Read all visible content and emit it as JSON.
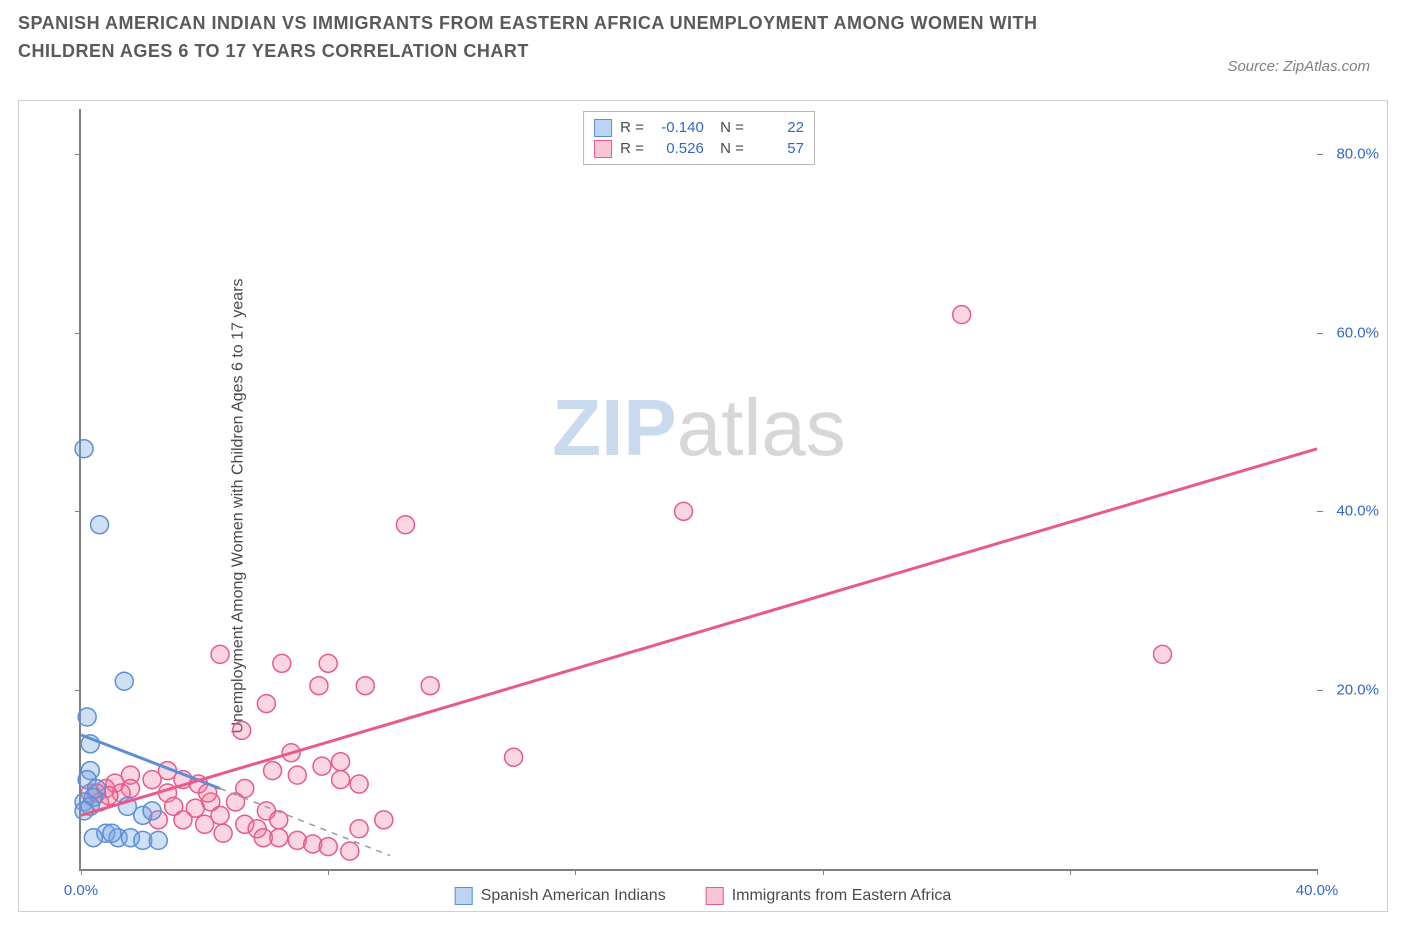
{
  "title": "SPANISH AMERICAN INDIAN VS IMMIGRANTS FROM EASTERN AFRICA UNEMPLOYMENT AMONG WOMEN WITH CHILDREN AGES 6 TO 17 YEARS CORRELATION CHART",
  "source": "Source: ZipAtlas.com",
  "y_label": "Unemployment Among Women with Children Ages 6 to 17 years",
  "watermark": {
    "left": "ZIP",
    "right": "atlas"
  },
  "chart": {
    "type": "scatter",
    "background_color": "#ffffff",
    "axis_color": "#808080",
    "tick_label_color": "#3366cc",
    "xlim": [
      0,
      40
    ],
    "ylim": [
      0,
      85
    ],
    "x_ticks": [
      {
        "value": 0,
        "label": "0.0%"
      },
      {
        "value": 40,
        "label": "40.0%"
      }
    ],
    "x_minor_ticks": [
      8,
      16,
      24,
      32
    ],
    "y_ticks": [
      {
        "value": 20,
        "label": "20.0%"
      },
      {
        "value": 40,
        "label": "40.0%"
      },
      {
        "value": 60,
        "label": "60.0%"
      },
      {
        "value": 80,
        "label": "80.0%"
      }
    ],
    "series": [
      {
        "id": "spanish_american_indians",
        "label": "Spanish American Indians",
        "fill": "rgba(117,162,224,0.35)",
        "stroke": "#5b8fd6",
        "swatch_fill": "#bcd3f2",
        "swatch_stroke": "#5b8fd6",
        "marker_radius": 9,
        "R": "-0.140",
        "N": "22",
        "trend": {
          "x1": 0,
          "y1": 15,
          "x2": 4.5,
          "y2": 9,
          "dash": false,
          "width": 3
        },
        "trend_ext": {
          "x1": 4.5,
          "y1": 9,
          "x2": 10,
          "y2": 1.5,
          "dash": true,
          "width": 1.5
        },
        "points": [
          [
            0.1,
            47
          ],
          [
            0.6,
            38.5
          ],
          [
            0.2,
            17
          ],
          [
            0.3,
            14
          ],
          [
            0.3,
            11
          ],
          [
            0.2,
            10
          ],
          [
            0.5,
            9
          ],
          [
            0.4,
            8
          ],
          [
            0.1,
            7.5
          ],
          [
            0.3,
            7
          ],
          [
            0.1,
            6.5
          ],
          [
            1.4,
            21
          ],
          [
            1.5,
            7
          ],
          [
            2.0,
            6
          ],
          [
            2.3,
            6.5
          ],
          [
            0.8,
            4
          ],
          [
            1.2,
            3.5
          ],
          [
            1.6,
            3.5
          ],
          [
            2.0,
            3.2
          ],
          [
            2.5,
            3.2
          ],
          [
            0.4,
            3.5
          ],
          [
            1.0,
            4
          ]
        ]
      },
      {
        "id": "immigrants_eastern_africa",
        "label": "Immigrants from Eastern Africa",
        "fill": "rgba(238,120,160,0.30)",
        "stroke": "#e85b89",
        "swatch_fill": "#f6c6d8",
        "swatch_stroke": "#e85b89",
        "marker_radius": 9,
        "R": "0.526",
        "N": "57",
        "trend": {
          "x1": 0,
          "y1": 6,
          "x2": 40,
          "y2": 47,
          "dash": false,
          "width": 3
        },
        "points": [
          [
            28.5,
            62
          ],
          [
            19.5,
            40
          ],
          [
            10.5,
            38.5
          ],
          [
            35,
            24
          ],
          [
            14,
            12.5
          ],
          [
            4.5,
            24
          ],
          [
            6.5,
            23
          ],
          [
            8.0,
            23
          ],
          [
            6.0,
            18.5
          ],
          [
            7.7,
            20.5
          ],
          [
            9.2,
            20.5
          ],
          [
            11.3,
            20.5
          ],
          [
            5.2,
            15.5
          ],
          [
            6.8,
            13
          ],
          [
            6.2,
            11
          ],
          [
            7.0,
            10.5
          ],
          [
            7.8,
            11.5
          ],
          [
            8.4,
            12
          ],
          [
            8.4,
            10
          ],
          [
            9.0,
            9.5
          ],
          [
            5.3,
            9
          ],
          [
            5.0,
            7.5
          ],
          [
            4.2,
            7.5
          ],
          [
            3.8,
            9.5
          ],
          [
            3.3,
            10
          ],
          [
            2.8,
            11
          ],
          [
            2.3,
            10
          ],
          [
            2.8,
            8.5
          ],
          [
            1.6,
            10.5
          ],
          [
            1.6,
            9
          ],
          [
            1.1,
            9.6
          ],
          [
            1.3,
            8.5
          ],
          [
            0.8,
            9
          ],
          [
            0.9,
            8.2
          ],
          [
            0.5,
            8.5
          ],
          [
            0.6,
            7.5
          ],
          [
            0.3,
            8.5
          ],
          [
            3.0,
            7
          ],
          [
            3.7,
            6.8
          ],
          [
            3.3,
            5.5
          ],
          [
            4.0,
            5
          ],
          [
            4.5,
            6
          ],
          [
            4.6,
            4
          ],
          [
            5.3,
            5
          ],
          [
            5.7,
            4.5
          ],
          [
            6.0,
            6.5
          ],
          [
            6.4,
            5.5
          ],
          [
            6.4,
            3.5
          ],
          [
            7.0,
            3.2
          ],
          [
            7.5,
            2.8
          ],
          [
            8.0,
            2.5
          ],
          [
            8.7,
            2
          ],
          [
            9.0,
            4.5
          ],
          [
            9.8,
            5.5
          ],
          [
            5.9,
            3.5
          ],
          [
            4.1,
            8.5
          ],
          [
            2.5,
            5.5
          ]
        ]
      }
    ]
  }
}
